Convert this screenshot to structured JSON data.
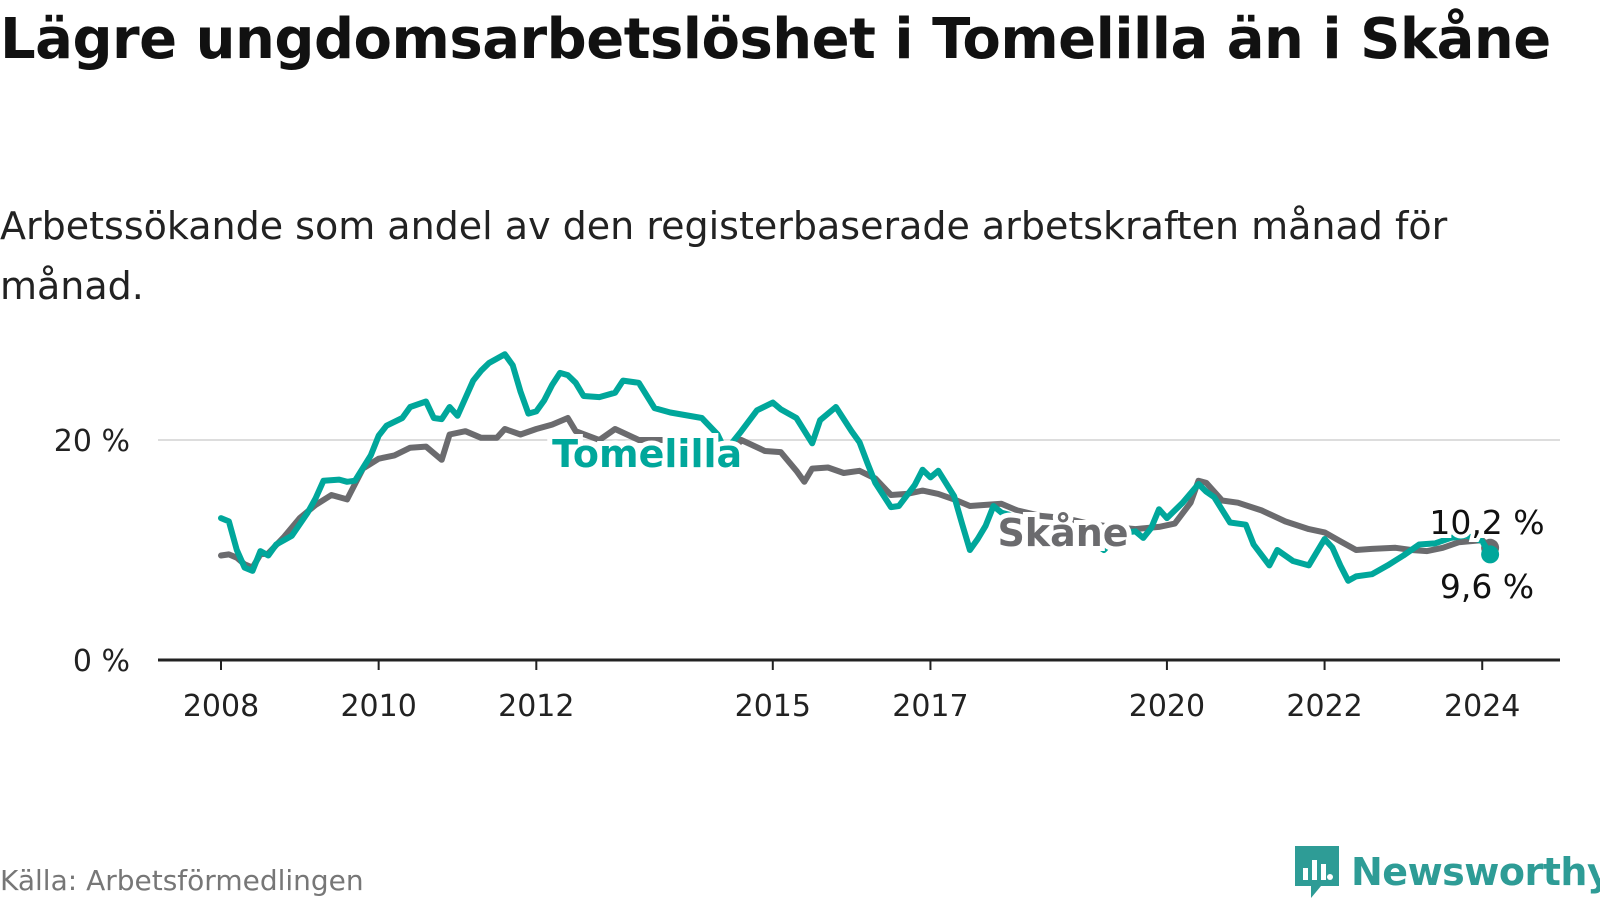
{
  "title": "Lägre ungdomsarbetslöshet i Tomelilla än i Skåne",
  "subtitle": "Arbetssökande som andel av den registerbaserade arbetskraften månad för månad.",
  "source": "Källa: Arbetsförmedlingen",
  "brand": "Newsworthy",
  "colors": {
    "tomelilla": "#00a79b",
    "skane": "#6b6b6e",
    "axis": "#222222",
    "grid": "#dddddd",
    "brand": "#2e9c96"
  },
  "chart_data": {
    "type": "line",
    "title": "Lägre ungdomsarbetslöshet i Tomelilla än i Skåne",
    "xlabel": "",
    "ylabel": "",
    "xlim": [
      2008,
      2024.2
    ],
    "ylim": [
      0,
      30
    ],
    "y_ticks": [
      0,
      20
    ],
    "y_tick_labels": [
      "0 %",
      "20 %"
    ],
    "x_ticks": [
      2008,
      2010,
      2012,
      2015,
      2017,
      2020,
      2022,
      2024
    ],
    "x_tick_labels": [
      "2008",
      "2010",
      "2012",
      "2015",
      "2017",
      "2020",
      "2022",
      "2024"
    ],
    "grid": true,
    "series": [
      {
        "name": "Tomelilla",
        "label": "Tomelilla",
        "end_label": "9,6 %",
        "points": [
          [
            2008.0,
            12.9
          ],
          [
            2008.1,
            12.6
          ],
          [
            2008.2,
            10.0
          ],
          [
            2008.3,
            8.4
          ],
          [
            2008.4,
            8.1
          ],
          [
            2008.5,
            9.9
          ],
          [
            2008.6,
            9.5
          ],
          [
            2008.7,
            10.5
          ],
          [
            2008.9,
            11.3
          ],
          [
            2009.1,
            13.4
          ],
          [
            2009.2,
            14.7
          ],
          [
            2009.3,
            16.3
          ],
          [
            2009.5,
            16.4
          ],
          [
            2009.6,
            16.2
          ],
          [
            2009.7,
            16.3
          ],
          [
            2009.9,
            18.6
          ],
          [
            2010.0,
            20.4
          ],
          [
            2010.1,
            21.3
          ],
          [
            2010.3,
            22.0
          ],
          [
            2010.4,
            23.0
          ],
          [
            2010.6,
            23.5
          ],
          [
            2010.7,
            22.0
          ],
          [
            2010.8,
            21.9
          ],
          [
            2010.9,
            23.0
          ],
          [
            2011.0,
            22.2
          ],
          [
            2011.2,
            25.4
          ],
          [
            2011.3,
            26.3
          ],
          [
            2011.4,
            27.0
          ],
          [
            2011.5,
            27.4
          ],
          [
            2011.6,
            27.8
          ],
          [
            2011.7,
            26.8
          ],
          [
            2011.8,
            24.4
          ],
          [
            2011.9,
            22.4
          ],
          [
            2012.0,
            22.6
          ],
          [
            2012.1,
            23.6
          ],
          [
            2012.2,
            25.0
          ],
          [
            2012.3,
            26.1
          ],
          [
            2012.4,
            25.9
          ],
          [
            2012.5,
            25.2
          ],
          [
            2012.6,
            24.0
          ],
          [
            2012.8,
            23.9
          ],
          [
            2013.0,
            24.3
          ],
          [
            2013.1,
            25.4
          ],
          [
            2013.3,
            25.2
          ],
          [
            2013.5,
            22.9
          ],
          [
            2013.7,
            22.5
          ],
          [
            2014.1,
            22.0
          ],
          [
            2014.3,
            20.5
          ],
          [
            2014.4,
            19.0
          ],
          [
            2014.6,
            20.8
          ],
          [
            2014.8,
            22.7
          ],
          [
            2015.0,
            23.4
          ],
          [
            2015.1,
            22.8
          ],
          [
            2015.3,
            22.0
          ],
          [
            2015.5,
            19.7
          ],
          [
            2015.6,
            21.8
          ],
          [
            2015.8,
            23.0
          ],
          [
            2016.0,
            20.8
          ],
          [
            2016.1,
            19.8
          ],
          [
            2016.2,
            17.9
          ],
          [
            2016.3,
            16.1
          ],
          [
            2016.5,
            13.9
          ],
          [
            2016.6,
            14.0
          ],
          [
            2016.8,
            15.9
          ],
          [
            2016.9,
            17.3
          ],
          [
            2017.0,
            16.6
          ],
          [
            2017.1,
            17.2
          ],
          [
            2017.3,
            14.9
          ],
          [
            2017.4,
            12.4
          ],
          [
            2017.5,
            10.0
          ],
          [
            2017.6,
            11.0
          ],
          [
            2017.7,
            12.2
          ],
          [
            2017.8,
            14.0
          ],
          [
            2017.9,
            13.4
          ],
          [
            2018.0,
            13.2
          ],
          [
            2018.2,
            12.6
          ],
          [
            2018.4,
            12.4
          ],
          [
            2018.6,
            12.3
          ],
          [
            2018.8,
            12.0
          ],
          [
            2019.0,
            11.0
          ],
          [
            2019.2,
            10.0
          ],
          [
            2019.4,
            11.5
          ],
          [
            2019.6,
            11.7
          ],
          [
            2019.7,
            11.1
          ],
          [
            2019.8,
            12.0
          ],
          [
            2019.9,
            13.7
          ],
          [
            2020.0,
            12.9
          ],
          [
            2020.2,
            14.3
          ],
          [
            2020.4,
            16.0
          ],
          [
            2020.5,
            15.3
          ],
          [
            2020.6,
            14.8
          ],
          [
            2020.8,
            12.5
          ],
          [
            2021.0,
            12.3
          ],
          [
            2021.1,
            10.5
          ],
          [
            2021.3,
            8.6
          ],
          [
            2021.4,
            10.0
          ],
          [
            2021.6,
            9.0
          ],
          [
            2021.8,
            8.6
          ],
          [
            2022.0,
            11.0
          ],
          [
            2022.1,
            10.2
          ],
          [
            2022.2,
            8.6
          ],
          [
            2022.3,
            7.2
          ],
          [
            2022.4,
            7.6
          ],
          [
            2022.6,
            7.8
          ],
          [
            2022.8,
            8.6
          ],
          [
            2023.0,
            9.5
          ],
          [
            2023.2,
            10.5
          ],
          [
            2023.4,
            10.6
          ],
          [
            2023.6,
            11.1
          ],
          [
            2023.8,
            11.3
          ],
          [
            2024.0,
            10.8
          ],
          [
            2024.1,
            9.6
          ]
        ]
      },
      {
        "name": "Skåne",
        "label": "Skåne",
        "end_label": "10,2 %",
        "points": [
          [
            2008.0,
            9.5
          ],
          [
            2008.1,
            9.6
          ],
          [
            2008.2,
            9.3
          ],
          [
            2008.3,
            8.7
          ],
          [
            2008.4,
            8.4
          ],
          [
            2008.5,
            9.6
          ],
          [
            2008.6,
            9.7
          ],
          [
            2008.8,
            11.2
          ],
          [
            2009.0,
            12.9
          ],
          [
            2009.2,
            14.1
          ],
          [
            2009.4,
            15.0
          ],
          [
            2009.6,
            14.6
          ],
          [
            2009.8,
            17.4
          ],
          [
            2010.0,
            18.3
          ],
          [
            2010.2,
            18.6
          ],
          [
            2010.4,
            19.3
          ],
          [
            2010.6,
            19.4
          ],
          [
            2010.8,
            18.2
          ],
          [
            2010.9,
            20.5
          ],
          [
            2011.1,
            20.8
          ],
          [
            2011.3,
            20.2
          ],
          [
            2011.5,
            20.2
          ],
          [
            2011.6,
            21.0
          ],
          [
            2011.8,
            20.5
          ],
          [
            2012.0,
            21.0
          ],
          [
            2012.2,
            21.4
          ],
          [
            2012.4,
            22.0
          ],
          [
            2012.5,
            20.8
          ],
          [
            2012.8,
            20.0
          ],
          [
            2013.0,
            21.0
          ],
          [
            2013.3,
            20.0
          ],
          [
            2013.6,
            20.0
          ],
          [
            2014.0,
            20.0
          ],
          [
            2014.2,
            20.1
          ],
          [
            2014.4,
            18.2
          ],
          [
            2014.6,
            20.0
          ],
          [
            2014.9,
            19.0
          ],
          [
            2015.1,
            18.9
          ],
          [
            2015.3,
            17.2
          ],
          [
            2015.4,
            16.2
          ],
          [
            2015.5,
            17.4
          ],
          [
            2015.7,
            17.5
          ],
          [
            2015.9,
            17.0
          ],
          [
            2016.1,
            17.2
          ],
          [
            2016.3,
            16.5
          ],
          [
            2016.5,
            15.0
          ],
          [
            2016.7,
            15.1
          ],
          [
            2016.9,
            15.4
          ],
          [
            2017.1,
            15.1
          ],
          [
            2017.3,
            14.6
          ],
          [
            2017.5,
            14.0
          ],
          [
            2017.7,
            14.1
          ],
          [
            2017.9,
            14.2
          ],
          [
            2018.1,
            13.6
          ],
          [
            2018.4,
            13.1
          ],
          [
            2018.7,
            12.9
          ],
          [
            2019.0,
            12.4
          ],
          [
            2019.3,
            12.1
          ],
          [
            2019.6,
            11.9
          ],
          [
            2019.9,
            12.1
          ],
          [
            2020.1,
            12.4
          ],
          [
            2020.3,
            14.3
          ],
          [
            2020.4,
            16.3
          ],
          [
            2020.5,
            16.1
          ],
          [
            2020.7,
            14.5
          ],
          [
            2020.9,
            14.3
          ],
          [
            2021.2,
            13.6
          ],
          [
            2021.5,
            12.6
          ],
          [
            2021.8,
            11.9
          ],
          [
            2022.0,
            11.6
          ],
          [
            2022.2,
            10.8
          ],
          [
            2022.4,
            10.0
          ],
          [
            2022.6,
            10.1
          ],
          [
            2022.9,
            10.2
          ],
          [
            2023.1,
            10.0
          ],
          [
            2023.3,
            9.9
          ],
          [
            2023.5,
            10.2
          ],
          [
            2023.7,
            10.7
          ],
          [
            2024.0,
            10.9
          ],
          [
            2024.1,
            10.2
          ]
        ]
      }
    ]
  }
}
